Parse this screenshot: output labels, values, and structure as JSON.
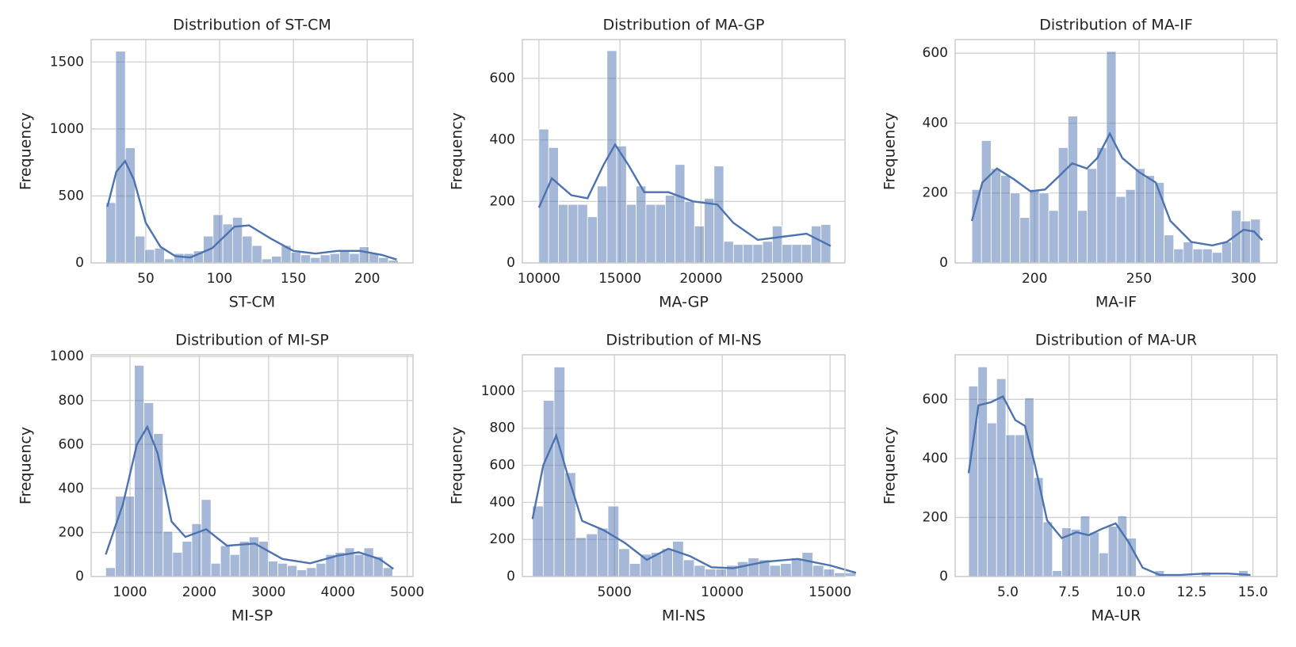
{
  "chart_data": [
    {
      "type": "histogram",
      "title": "Distribution of ST-CM",
      "xlabel": "ST-CM",
      "ylabel": "Frequency",
      "color": "#4c72b0",
      "grid": true,
      "bins": [
        23,
        29.6,
        36.2,
        42.8,
        49.4,
        56,
        62.6,
        69.2,
        75.8,
        82.4,
        89,
        95.6,
        102.2,
        108.8,
        115.4,
        122,
        128.6,
        135.2,
        141.8,
        148.4,
        155,
        161.6,
        168.2,
        174.8,
        181.4,
        188,
        194.6,
        201.2,
        207.8,
        214.4,
        221
      ],
      "counts": [
        450,
        1580,
        860,
        200,
        100,
        110,
        30,
        70,
        70,
        90,
        200,
        360,
        290,
        340,
        200,
        130,
        30,
        50,
        130,
        80,
        60,
        40,
        60,
        70,
        90,
        70,
        120,
        70,
        40,
        20
      ],
      "kde": {
        "x": [
          24,
          30,
          36,
          42,
          50,
          60,
          70,
          80,
          95,
          110,
          120,
          135,
          150,
          165,
          180,
          195,
          210,
          220
        ],
        "values": [
          420,
          680,
          760,
          620,
          300,
          120,
          50,
          40,
          110,
          270,
          280,
          180,
          90,
          70,
          90,
          90,
          60,
          25
        ]
      },
      "xlim": [
        13,
        231
      ],
      "xticks": [
        50,
        100,
        150,
        200
      ],
      "ylim": [
        0,
        1667
      ],
      "yticks": [
        0,
        500,
        1000,
        1500
      ]
    },
    {
      "type": "histogram",
      "title": "Distribution of MA-GP",
      "xlabel": "MA-GP",
      "ylabel": "Frequency",
      "color": "#4c72b0",
      "grid": true,
      "bins": [
        10000,
        10600,
        11200,
        11800,
        12400,
        13000,
        13600,
        14200,
        14800,
        15400,
        16000,
        16600,
        17200,
        17800,
        18400,
        19000,
        19600,
        20200,
        20800,
        21400,
        22000,
        22600,
        23200,
        23800,
        24400,
        25000,
        25600,
        26200,
        26800,
        27400,
        28000
      ],
      "counts": [
        435,
        375,
        190,
        190,
        190,
        150,
        250,
        690,
        380,
        190,
        250,
        190,
        190,
        220,
        320,
        200,
        120,
        210,
        315,
        70,
        60,
        60,
        60,
        70,
        120,
        60,
        60,
        60,
        120,
        125
      ],
      "kde": {
        "x": [
          10000,
          10800,
          12000,
          13000,
          14000,
          14700,
          15500,
          16500,
          18000,
          19500,
          21000,
          22000,
          23500,
          25000,
          26500,
          28000
        ],
        "values": [
          180,
          275,
          220,
          210,
          320,
          385,
          320,
          230,
          230,
          200,
          190,
          130,
          75,
          85,
          95,
          55
        ]
      },
      "xlim": [
        8980,
        28878
      ],
      "xticks": [
        10000,
        15000,
        20000,
        25000
      ],
      "ylim": [
        0,
        726
      ],
      "yticks": [
        0,
        200,
        400,
        600
      ]
    },
    {
      "type": "histogram",
      "title": "Distribution of MA-IF",
      "xlabel": "MA-IF",
      "ylabel": "Frequency",
      "color": "#4c72b0",
      "grid": true,
      "bins": [
        170,
        174.6,
        179.2,
        183.8,
        188.4,
        193,
        197.6,
        202.2,
        206.8,
        211.4,
        216,
        220.6,
        225.2,
        229.8,
        234.4,
        239,
        243.6,
        248.2,
        252.8,
        257.4,
        262,
        266.6,
        271.2,
        275.8,
        280.4,
        285,
        289.6,
        294.2,
        298.8,
        303.4,
        308
      ],
      "counts": [
        210,
        350,
        270,
        250,
        200,
        130,
        210,
        200,
        150,
        330,
        420,
        150,
        270,
        330,
        605,
        190,
        210,
        270,
        250,
        230,
        80,
        40,
        60,
        40,
        40,
        30,
        60,
        150,
        120,
        125
      ],
      "kde": {
        "x": [
          170,
          175,
          182,
          190,
          198,
          205,
          212,
          218,
          225,
          230,
          236,
          242,
          250,
          258,
          265,
          275,
          285,
          292,
          300,
          305,
          309
        ],
        "values": [
          120,
          230,
          270,
          240,
          205,
          210,
          250,
          285,
          270,
          300,
          370,
          300,
          260,
          230,
          120,
          60,
          50,
          60,
          95,
          90,
          65
        ]
      },
      "xlim": [
        162,
        316
      ],
      "xticks": [
        200,
        250,
        300
      ],
      "ylim": [
        0,
        639
      ],
      "yticks": [
        0,
        200,
        400,
        600
      ]
    },
    {
      "type": "histogram",
      "title": "Distribution of MI-SP",
      "xlabel": "MI-SP",
      "ylabel": "Frequency",
      "color": "#4c72b0",
      "grid": true,
      "bins": [
        650,
        788,
        926,
        1064,
        1202,
        1340,
        1478,
        1616,
        1754,
        1892,
        2030,
        2168,
        2306,
        2444,
        2582,
        2720,
        2858,
        2996,
        3134,
        3272,
        3410,
        3548,
        3686,
        3824,
        3962,
        4100,
        4238,
        4376,
        4514,
        4652,
        4790
      ],
      "counts": [
        40,
        365,
        365,
        960,
        790,
        650,
        205,
        110,
        160,
        240,
        350,
        60,
        140,
        100,
        160,
        180,
        160,
        70,
        60,
        50,
        30,
        40,
        60,
        100,
        110,
        130,
        100,
        130,
        90,
        40
      ],
      "kde": {
        "x": [
          650,
          900,
          1100,
          1250,
          1400,
          1600,
          1800,
          2100,
          2400,
          2800,
          3200,
          3600,
          4000,
          4300,
          4600,
          4800
        ],
        "values": [
          100,
          330,
          600,
          680,
          560,
          250,
          180,
          215,
          140,
          150,
          80,
          60,
          95,
          110,
          80,
          35
        ]
      },
      "xlim": [
        440,
        5083
      ],
      "xticks": [
        1000,
        2000,
        3000,
        4000,
        5000
      ],
      "ylim": [
        0,
        1008
      ],
      "yticks": [
        0,
        200,
        400,
        600,
        800,
        1000
      ]
    },
    {
      "type": "histogram",
      "title": "Distribution of MI-NS",
      "xlabel": "MI-NS",
      "ylabel": "Frequency",
      "color": "#4c72b0",
      "grid": true,
      "bins": [
        1200,
        1700,
        2200,
        2700,
        3200,
        3700,
        4200,
        4700,
        5200,
        5700,
        6200,
        6700,
        7200,
        7700,
        8200,
        8700,
        9200,
        9700,
        10200,
        10700,
        11200,
        11700,
        12200,
        12700,
        13200,
        13700,
        14200,
        14700,
        15200,
        15700,
        16200
      ],
      "counts": [
        380,
        950,
        1130,
        560,
        210,
        230,
        260,
        380,
        150,
        70,
        120,
        130,
        150,
        190,
        90,
        60,
        40,
        40,
        60,
        80,
        100,
        90,
        60,
        70,
        100,
        130,
        60,
        40,
        20,
        20
      ],
      "kde": {
        "x": [
          1200,
          1700,
          2300,
          2800,
          3500,
          4500,
          5500,
          6500,
          7500,
          8500,
          9500,
          10500,
          12000,
          13500,
          15000,
          16200
        ],
        "values": [
          310,
          600,
          760,
          560,
          300,
          250,
          180,
          90,
          150,
          110,
          50,
          45,
          80,
          95,
          60,
          20
        ]
      },
      "xlim": [
        730,
        15690
      ],
      "xticks": [
        5000,
        10000,
        15000
      ],
      "ylim": [
        0,
        1196
      ],
      "yticks": [
        0,
        200,
        400,
        600,
        800,
        1000
      ]
    },
    {
      "type": "histogram",
      "title": "Distribution of MA-UR",
      "xlabel": "MA-UR",
      "ylabel": "Frequency",
      "color": "#4c72b0",
      "grid": true,
      "bins": [
        3.4,
        3.78,
        4.16,
        4.54,
        4.92,
        5.3,
        5.68,
        6.06,
        6.44,
        6.82,
        7.2,
        7.58,
        7.96,
        8.34,
        8.72,
        9.1,
        9.48,
        9.86,
        10.24,
        10.62,
        11,
        11.38,
        11.76,
        12.14,
        12.52,
        12.9,
        13.28,
        13.66,
        14.04,
        14.42,
        14.8
      ],
      "counts": [
        645,
        710,
        520,
        670,
        480,
        480,
        605,
        335,
        185,
        20,
        165,
        160,
        205,
        150,
        80,
        170,
        205,
        130,
        0,
        0,
        20,
        0,
        0,
        0,
        0,
        15,
        0,
        0,
        0,
        20
      ],
      "kde": {
        "x": [
          3.4,
          3.8,
          4.3,
          4.8,
          5.3,
          5.7,
          6.1,
          6.6,
          7.2,
          7.8,
          8.3,
          8.8,
          9.4,
          9.9,
          10.5,
          11.2,
          12,
          13,
          14,
          14.9
        ],
        "values": [
          350,
          580,
          590,
          610,
          530,
          510,
          380,
          190,
          130,
          150,
          140,
          160,
          180,
          120,
          30,
          5,
          5,
          10,
          10,
          5
        ]
      },
      "xlim": [
        2.85,
        15.98
      ],
      "xticks": [
        {
          "value": 5,
          "label": "5.0"
        },
        7.5,
        {
          "value": 10,
          "label": "10.0"
        },
        12.5,
        {
          "value": 15,
          "label": "15.0"
        }
      ],
      "ylim": [
        0,
        751
      ],
      "yticks": [
        0,
        200,
        400,
        600
      ]
    }
  ]
}
